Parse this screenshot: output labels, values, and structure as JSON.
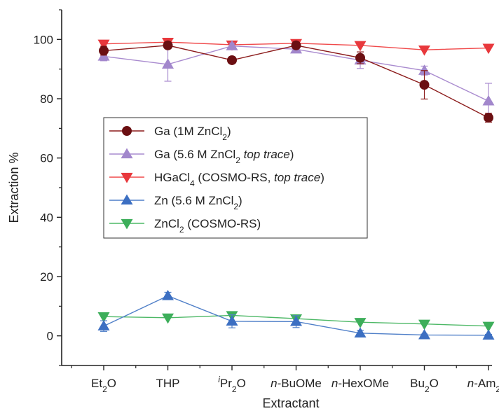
{
  "chart_data": {
    "type": "line",
    "xlabel": "Extractant",
    "ylabel": "Extraction %",
    "ylim": [
      -10,
      110
    ],
    "yticks": [
      0,
      20,
      40,
      60,
      80,
      100
    ],
    "grid": false,
    "legend_placement": "center-left",
    "categories": [
      {
        "base": "Et",
        "sub": "2",
        "tail": "O"
      },
      {
        "base": "THP",
        "sub": "",
        "tail": ""
      },
      {
        "sup": "i",
        "base": "Pr",
        "sub": "2",
        "tail": "O"
      },
      {
        "ital": "n",
        "base": "-BuOMe",
        "sub": "",
        "tail": ""
      },
      {
        "ital": "n",
        "base": "-HexOMe",
        "sub": "",
        "tail": ""
      },
      {
        "base": "Bu",
        "sub": "2",
        "tail": "O"
      },
      {
        "ital": "n",
        "base": "-Am",
        "sub": "2",
        "tail": "O"
      }
    ],
    "series": [
      {
        "name": "Ga (1M ZnCl2)",
        "legend": [
          {
            "t": "Ga (1M ZnCl"
          },
          {
            "t": "2",
            "sub": true
          },
          {
            "t": ")"
          }
        ],
        "marker": "circle",
        "color": "#8B1A1A",
        "marker_color": "#6B0F12",
        "values": [
          96.2,
          98.0,
          93.0,
          98.0,
          93.8,
          84.7,
          73.6
        ],
        "errors": [
          1.5,
          1.0,
          1.0,
          1.0,
          2.0,
          4.8,
          1.5
        ]
      },
      {
        "name": "Ga (5.6 M ZnCl2 top trace)",
        "legend": [
          {
            "t": "Ga (5.6 M ZnCl"
          },
          {
            "t": "2",
            "sub": true
          },
          {
            "t": " top trace",
            "ital": true
          },
          {
            "t": ")"
          }
        ],
        "marker": "triangle-up",
        "color": "#A98BCF",
        "marker_color": "#A287CC",
        "values": [
          94.3,
          91.6,
          97.8,
          96.7,
          93.0,
          89.5,
          79.2
        ],
        "errors": [
          1.5,
          5.7,
          1.0,
          1.0,
          2.8,
          1.5,
          6.0
        ]
      },
      {
        "name": "HGaCl4 (COSMO-RS, top trace)",
        "legend": [
          {
            "t": "HGaCl"
          },
          {
            "t": "4",
            "sub": true
          },
          {
            "t": " (COSMO-RS, "
          },
          {
            "t": "top trace",
            "ital": true
          },
          {
            "t": ")"
          }
        ],
        "marker": "triangle-down",
        "color": "#F0494A",
        "marker_color": "#E8383C",
        "values": [
          98.5,
          99.1,
          98.2,
          98.7,
          98.0,
          96.5,
          97.1
        ],
        "errors": [
          0,
          0,
          0,
          0,
          0,
          0,
          0
        ]
      },
      {
        "name": "Zn (5.6 M ZnCl2)",
        "legend": [
          {
            "t": "Zn (5.6 M ZnCl"
          },
          {
            "t": "2",
            "sub": true
          },
          {
            "t": ")"
          }
        ],
        "marker": "triangle-up",
        "color": "#4F7FC8",
        "marker_color": "#3C6FC2",
        "values": [
          3.3,
          13.5,
          4.9,
          4.8,
          0.9,
          0.3,
          0.2
        ],
        "errors": [
          1.8,
          1.2,
          2.2,
          2.0,
          1.0,
          0.3,
          0.3
        ]
      },
      {
        "name": "ZnCl2 (COSMO-RS)",
        "legend": [
          {
            "t": "ZnCl"
          },
          {
            "t": "2",
            "sub": true
          },
          {
            "t": " (COSMO-RS)"
          }
        ],
        "marker": "triangle-down",
        "color": "#4DB866",
        "marker_color": "#3DAE5A",
        "values": [
          6.5,
          6.1,
          6.9,
          5.8,
          4.6,
          4.0,
          3.3
        ],
        "errors": [
          0,
          0,
          0,
          0,
          0,
          0,
          0
        ]
      }
    ]
  }
}
